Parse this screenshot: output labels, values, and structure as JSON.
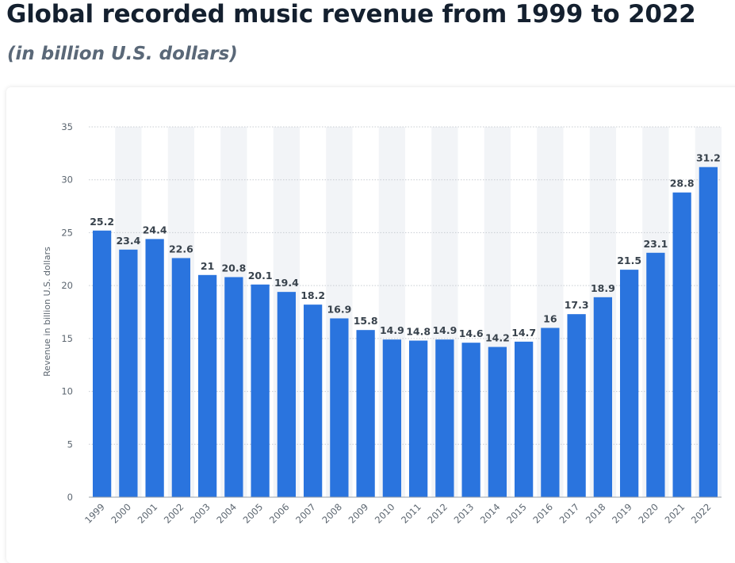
{
  "header": {
    "title": "Global recorded music revenue from 1999 to 2022",
    "subtitle": "(in billion U.S. dollars)"
  },
  "colors": {
    "bar": "#2a74de",
    "stripe": "#f2f4f7",
    "grid": "#c8ccd2",
    "title": "#14202f",
    "subtitle": "#5a6878"
  },
  "chart_data": {
    "type": "bar",
    "title": "Global recorded music revenue from 1999 to 2022",
    "ylabel": "Revenue in billion U.S. dollars",
    "xlabel": "",
    "categories": [
      "1999",
      "2000",
      "2001",
      "2002",
      "2003",
      "2004",
      "2005",
      "2006",
      "2007",
      "2008",
      "2009",
      "2010",
      "2011",
      "2012",
      "2013",
      "2014",
      "2015",
      "2016",
      "2017",
      "2018",
      "2019",
      "2020",
      "2021",
      "2022"
    ],
    "values": [
      25.2,
      23.4,
      24.4,
      22.6,
      21,
      20.8,
      20.1,
      19.4,
      18.2,
      16.9,
      15.8,
      14.9,
      14.8,
      14.9,
      14.6,
      14.2,
      14.7,
      16,
      17.3,
      18.9,
      21.5,
      23.1,
      28.8,
      31.2
    ],
    "ylim": [
      0,
      35
    ],
    "yticks": [
      0,
      5,
      10,
      15,
      20,
      25,
      30,
      35
    ],
    "grid": true,
    "legend": "none"
  }
}
